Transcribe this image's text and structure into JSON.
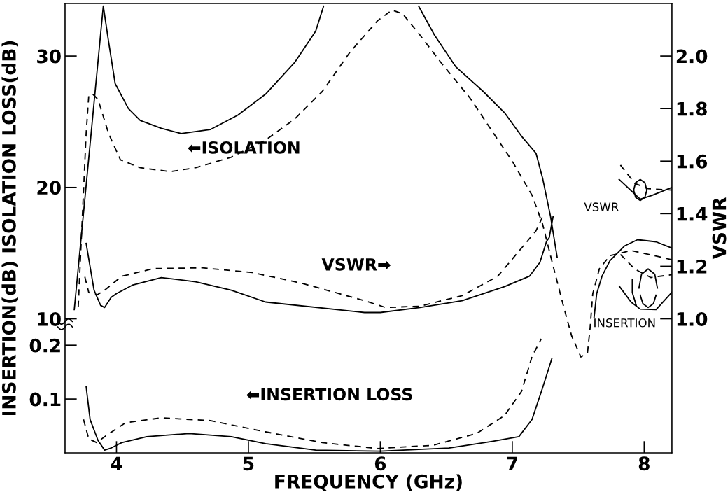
{
  "chart_data": {
    "type": "line",
    "xlabel": "FREQUENCY (GHz)",
    "ylabel": "INSERTION(dB) ISOLATION LOSS(dB)",
    "y2label": "VSWR",
    "xlim": [
      3.61,
      8.21
    ],
    "xticks": [
      4,
      5,
      6,
      7,
      8
    ],
    "ylim": [
      -0.2,
      34
    ],
    "yticks": [
      10,
      20,
      30
    ],
    "y2lim": [
      0.49,
      2.2
    ],
    "y2ticks": [
      {
        "value": 1.0,
        "label": "1.0"
      },
      1.2,
      1.4,
      1.6,
      1.8,
      {
        "value": 2.0,
        "label": "2.0"
      }
    ],
    "y3lim": [
      0,
      0.835
    ],
    "y3ticks": [
      0.1,
      0.2
    ],
    "series": [
      {
        "axis": "y",
        "color": "#000000",
        "line_style": "solid",
        "x": [
          3.68,
          3.9,
          3.94,
          3.99,
          4.09,
          4.18,
          4.34,
          4.49,
          4.71,
          4.92,
          5.13,
          5.35,
          5.51,
          5.57,
          5.9,
          6.29,
          6.41,
          6.57,
          6.78,
          6.94,
          7.07,
          7.18,
          7.23,
          7.29,
          7.34
        ],
        "values": [
          10.7,
          33.8,
          31.1,
          27.9,
          26.0,
          25.1,
          24.5,
          24.1,
          24.4,
          25.5,
          27.1,
          29.5,
          31.9,
          33.8,
          null,
          33.8,
          31.6,
          29.2,
          27.3,
          25.7,
          23.9,
          22.6,
          20.7,
          17.8,
          14.7
        ]
      },
      {
        "axis": "y",
        "color": "#000000",
        "line_style": "dashed",
        "x": [
          3.71,
          3.77,
          3.79,
          3.82,
          3.86,
          3.94,
          4.03,
          4.18,
          4.41,
          4.6,
          4.87,
          5.13,
          5.35,
          5.56,
          5.77,
          5.98,
          6.09,
          6.17,
          6.3,
          6.46,
          6.68,
          6.84,
          7.0,
          7.15,
          7.23,
          7.31,
          7.39,
          7.45,
          7.52,
          7.57,
          7.59,
          7.61,
          7.66,
          7.74,
          7.9,
          8.21
        ],
        "values": [
          10.9,
          24.1,
          27.0,
          27.1,
          26.7,
          24.1,
          22.1,
          21.5,
          21.2,
          21.5,
          22.3,
          23.6,
          25.2,
          27.3,
          30.3,
          32.7,
          33.5,
          33.2,
          31.6,
          29.5,
          26.8,
          24.4,
          22.0,
          19.4,
          17.2,
          14.0,
          10.9,
          8.7,
          7.1,
          7.4,
          9.3,
          11.9,
          13.8,
          14.8,
          15.2,
          14.5
        ]
      },
      {
        "axis": "y2",
        "color": "#000000",
        "line_style": "solid",
        "x": [
          3.77,
          3.83,
          3.88,
          3.91,
          3.96,
          4.0,
          4.12,
          4.34,
          4.6,
          4.87,
          5.13,
          5.88,
          6.0,
          6.3,
          6.62,
          6.94,
          7.13,
          7.21,
          7.26,
          7.28,
          7.31
        ],
        "values": [
          1.287,
          1.109,
          1.051,
          1.043,
          1.082,
          1.096,
          1.128,
          1.157,
          1.141,
          1.109,
          1.064,
          1.024,
          1.024,
          1.043,
          1.069,
          1.122,
          1.162,
          1.215,
          1.295,
          1.309,
          1.39
        ]
      },
      {
        "axis": "y2",
        "color": "#000000",
        "line_style": "dashed",
        "x": [
          3.76,
          3.79,
          3.85,
          3.91,
          4.04,
          4.28,
          4.65,
          5.03,
          5.4,
          5.88,
          6.04,
          6.3,
          6.62,
          6.89,
          7.07,
          7.18,
          7.23
        ],
        "values": [
          1.16,
          1.1,
          1.09,
          1.109,
          1.162,
          1.191,
          1.194,
          1.176,
          1.136,
          1.069,
          1.043,
          1.048,
          1.088,
          1.162,
          1.269,
          1.335,
          1.388
        ]
      },
      {
        "axis": "y3",
        "color": "#000000",
        "line_style": "solid",
        "x": [
          3.77,
          3.8,
          3.86,
          3.91,
          3.96,
          4.04,
          4.23,
          4.55,
          4.87,
          5.13,
          5.51,
          6.0,
          6.52,
          6.84,
          7.05,
          7.15,
          7.23,
          7.3
        ],
        "values": [
          0.123,
          0.062,
          0.023,
          0.005,
          0.009,
          0.019,
          0.03,
          0.036,
          0.03,
          0.017,
          0.005,
          0.003,
          0.009,
          0.021,
          0.03,
          0.062,
          0.121,
          0.175
        ]
      },
      {
        "axis": "y3",
        "color": "#000000",
        "line_style": "dashed",
        "x": [
          3.75,
          3.79,
          3.85,
          3.91,
          4.07,
          4.34,
          4.71,
          5.13,
          5.56,
          5.98,
          6.4,
          6.73,
          6.94,
          7.07,
          7.15,
          7.22
        ],
        "values": [
          0.062,
          0.026,
          0.019,
          0.03,
          0.056,
          0.065,
          0.06,
          0.039,
          0.019,
          0.008,
          0.014,
          0.036,
          0.069,
          0.114,
          0.179,
          0.212
        ]
      },
      {
        "axis": "y2",
        "color": "#000000",
        "line_style": "solid",
        "x": [
          7.81,
          7.97,
          8.06,
          8.21
        ],
        "values": [
          1.53,
          1.455,
          1.47,
          1.5
        ]
      },
      {
        "axis": "y2",
        "color": "#000000",
        "line_style": "dashed",
        "x": [
          7.82,
          7.93,
          8.03,
          8.21
        ],
        "values": [
          1.585,
          1.515,
          1.495,
          1.49
        ]
      },
      {
        "axis": "y2",
        "color": "#000000",
        "line_style": "solid",
        "x": [
          7.92,
          7.935,
          7.97,
          8.005,
          8.02
        ],
        "values": [
          1.49,
          1.518,
          1.53,
          1.518,
          1.49
        ]
      },
      {
        "axis": "y2",
        "color": "#000000",
        "line_style": "solid",
        "x": [
          7.92,
          7.935,
          7.97,
          8.005,
          8.02
        ],
        "values": [
          1.49,
          1.462,
          1.45,
          1.462,
          1.49
        ]
      },
      {
        "axis": "y2",
        "color": "#000000",
        "line_style": "solid",
        "x": [
          7.62,
          7.64,
          7.68,
          7.74,
          7.85,
          7.95,
          8.09,
          8.21
        ],
        "values": [
          1.005,
          1.096,
          1.162,
          1.221,
          1.277,
          1.301,
          1.293,
          1.269
        ]
      },
      {
        "axis": "y2",
        "color": "#000000",
        "line_style": "solid",
        "x": [
          7.81,
          7.9,
          7.97,
          8.09,
          8.21
        ],
        "values": [
          1.125,
          1.064,
          1.037,
          1.035,
          1.101
        ]
      },
      {
        "axis": "y2",
        "color": "#000000",
        "line_style": "dashed",
        "x": [
          7.82,
          7.93,
          8.05,
          8.21
        ],
        "values": [
          1.245,
          1.189,
          1.157,
          1.168
        ]
      },
      {
        "axis": "y2",
        "color": "#000000",
        "line_style": "solid",
        "x": [
          7.96,
          7.98,
          8.03,
          8.08,
          8.1
        ],
        "values": [
          1.117,
          1.17,
          1.19,
          1.17,
          1.117
        ]
      },
      {
        "axis": "y2",
        "color": "#000000",
        "line_style": "solid",
        "x": [
          7.97,
          7.99,
          8.03,
          8.07,
          8.09
        ],
        "values": [
          1.09,
          1.058,
          1.043,
          1.058,
          1.09
        ]
      },
      {
        "axis": "y2",
        "color": "#000000",
        "line_style": "solid",
        "x": [
          7.91,
          7.91,
          7.94
        ],
        "values": [
          1.149,
          1.1,
          1.051
        ]
      }
    ],
    "annotations": [
      "⬅ISOLATION",
      "VSWR➡",
      "⬅INSERTION LOSS",
      "VSWR",
      "INSERTION"
    ]
  }
}
